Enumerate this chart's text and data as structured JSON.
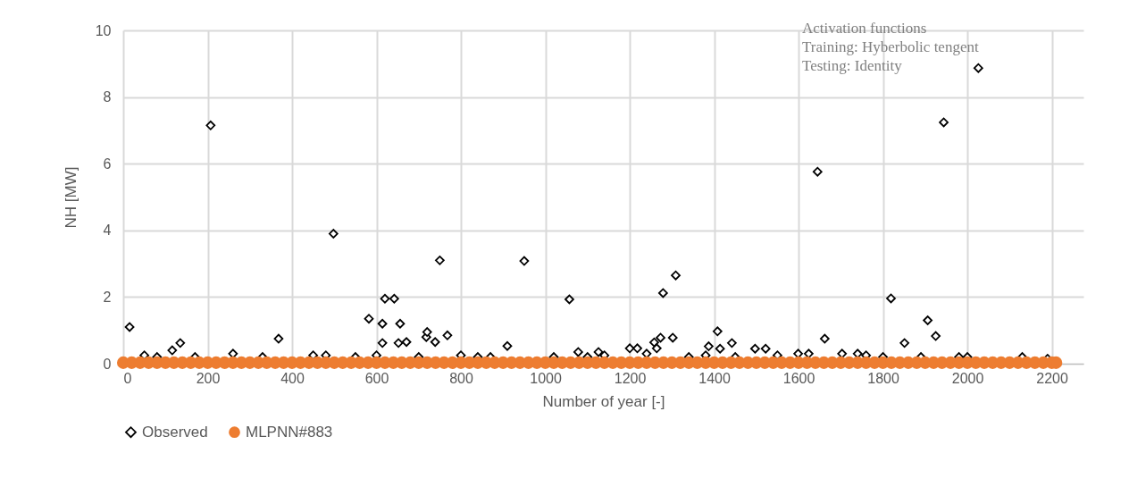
{
  "chart_data": {
    "type": "scatter",
    "xlabel": "Number of year [-]",
    "ylabel": "NH [MW]",
    "annotations": [
      "Activation functions",
      "Training: Hyberbolic tengent",
      "Testing: Identity"
    ],
    "xlim": [
      0,
      2275
    ],
    "xticks": [
      0,
      200,
      400,
      600,
      800,
      1000,
      1200,
      1400,
      1600,
      1800,
      2000,
      2200
    ],
    "ylim": [
      0,
      10
    ],
    "yticks": [
      0,
      2,
      4,
      6,
      8,
      10
    ],
    "grid": true,
    "legend": "bottom",
    "series": [
      {
        "name": "Observed",
        "color": "#000000",
        "marker": "diamond",
        "x": [
          15,
          50,
          80,
          116,
          135,
          170,
          207,
          260,
          330,
          368,
          450,
          480,
          498,
          550,
          582,
          600,
          614,
          614,
          620,
          642,
          652,
          656,
          671,
          700,
          718,
          720,
          739,
          750,
          768,
          800,
          840,
          870,
          910,
          950,
          1020,
          1057,
          1078,
          1100,
          1126,
          1140,
          1200,
          1218,
          1240,
          1258,
          1264,
          1273,
          1279,
          1302,
          1309,
          1340,
          1380,
          1387,
          1408,
          1414,
          1442,
          1450,
          1497,
          1522,
          1550,
          1599,
          1624,
          1645,
          1662,
          1703,
          1740,
          1760,
          1800,
          1819,
          1851,
          1890,
          1906,
          1925,
          1944,
          1980,
          2000,
          2026,
          2130,
          2190
        ],
        "values": [
          1.1,
          0.25,
          0.2,
          0.4,
          0.62,
          0.2,
          7.15,
          0.3,
          0.2,
          0.75,
          0.25,
          0.25,
          3.9,
          0.2,
          1.35,
          0.25,
          1.2,
          0.62,
          1.95,
          1.95,
          0.62,
          1.2,
          0.65,
          0.2,
          0.8,
          0.95,
          0.65,
          3.1,
          0.85,
          0.25,
          0.2,
          0.2,
          0.53,
          3.08,
          0.2,
          1.93,
          0.35,
          0.2,
          0.35,
          0.25,
          0.46,
          0.46,
          0.3,
          0.64,
          0.46,
          0.78,
          2.12,
          0.78,
          2.65,
          0.2,
          0.25,
          0.52,
          0.97,
          0.45,
          0.62,
          0.2,
          0.45,
          0.45,
          0.25,
          0.3,
          0.3,
          5.76,
          0.75,
          0.3,
          0.3,
          0.25,
          0.2,
          1.96,
          0.62,
          0.2,
          1.3,
          0.83,
          7.24,
          0.2,
          0.2,
          8.87,
          0.2,
          0.15
        ]
      },
      {
        "name": "MLPNN#883",
        "color": "#ed7d31",
        "marker": "circle",
        "x": [
          0,
          20,
          40,
          60,
          80,
          100,
          120,
          140,
          160,
          180,
          200,
          220,
          240,
          260,
          280,
          300,
          320,
          340,
          360,
          380,
          400,
          420,
          440,
          460,
          480,
          500,
          520,
          540,
          560,
          580,
          600,
          620,
          640,
          660,
          680,
          700,
          720,
          740,
          760,
          780,
          800,
          820,
          840,
          860,
          880,
          900,
          920,
          940,
          960,
          980,
          1000,
          1020,
          1040,
          1060,
          1080,
          1100,
          1120,
          1140,
          1160,
          1180,
          1200,
          1220,
          1240,
          1260,
          1280,
          1300,
          1320,
          1340,
          1360,
          1380,
          1400,
          1420,
          1440,
          1460,
          1480,
          1500,
          1520,
          1540,
          1560,
          1580,
          1600,
          1620,
          1640,
          1660,
          1680,
          1700,
          1720,
          1740,
          1760,
          1780,
          1800,
          1820,
          1840,
          1860,
          1880,
          1900,
          1920,
          1940,
          1960,
          1980,
          2000,
          2020,
          2040,
          2060,
          2080,
          2100,
          2120,
          2140,
          2160,
          2180,
          2200,
          2210
        ],
        "values": [
          0.03,
          0.03,
          0.03,
          0.03,
          0.03,
          0.03,
          0.03,
          0.03,
          0.03,
          0.03,
          0.03,
          0.03,
          0.03,
          0.03,
          0.03,
          0.03,
          0.03,
          0.03,
          0.03,
          0.03,
          0.03,
          0.03,
          0.03,
          0.03,
          0.03,
          0.03,
          0.03,
          0.03,
          0.03,
          0.03,
          0.03,
          0.03,
          0.03,
          0.03,
          0.03,
          0.03,
          0.03,
          0.03,
          0.03,
          0.03,
          0.03,
          0.03,
          0.03,
          0.03,
          0.03,
          0.03,
          0.03,
          0.03,
          0.03,
          0.03,
          0.03,
          0.03,
          0.03,
          0.03,
          0.03,
          0.03,
          0.03,
          0.03,
          0.03,
          0.03,
          0.03,
          0.03,
          0.03,
          0.03,
          0.03,
          0.03,
          0.03,
          0.03,
          0.03,
          0.03,
          0.03,
          0.03,
          0.03,
          0.03,
          0.03,
          0.03,
          0.03,
          0.03,
          0.03,
          0.03,
          0.03,
          0.03,
          0.03,
          0.03,
          0.03,
          0.03,
          0.03,
          0.03,
          0.03,
          0.03,
          0.03,
          0.03,
          0.03,
          0.03,
          0.03,
          0.03,
          0.03,
          0.03,
          0.03,
          0.03,
          0.03,
          0.03,
          0.03,
          0.03,
          0.03,
          0.03,
          0.03,
          0.03,
          0.03,
          0.03,
          0.03,
          0.03
        ]
      }
    ]
  }
}
